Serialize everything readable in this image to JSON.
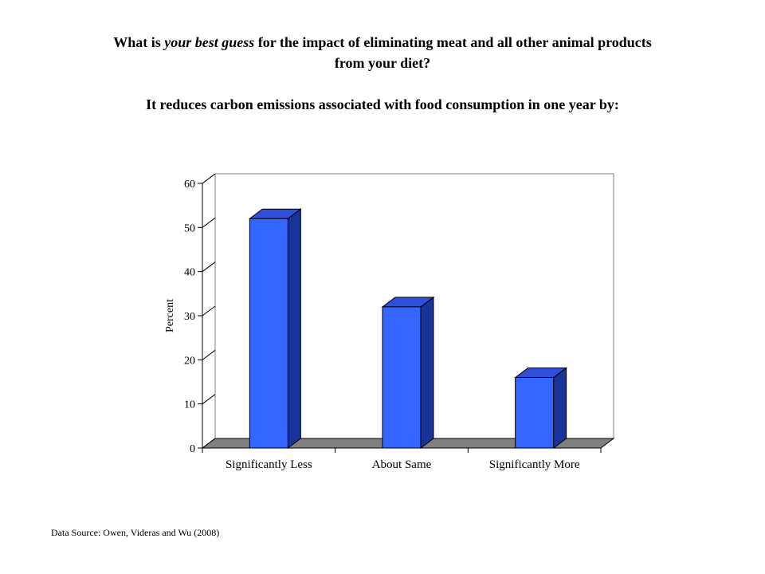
{
  "header": {
    "question_pre": "What is ",
    "question_emph": "your best guess",
    "question_post": " for the impact of eliminating meat and all other animal products",
    "question_line2": "from your diet?",
    "statement": "It reduces carbon emissions associated with food consumption in one year by:"
  },
  "footer": {
    "source": "Data Source: Owen, Videras and Wu (2008)"
  },
  "chart_data": {
    "type": "bar",
    "categories": [
      "Significantly Less",
      "About Same",
      "Significantly More"
    ],
    "values": [
      52,
      32,
      16
    ],
    "ylabel": "Percent",
    "xlabel": "",
    "ylim": [
      0,
      60
    ],
    "yticks": [
      0,
      10,
      20,
      30,
      40,
      50,
      60
    ],
    "grid": false,
    "three_d": true,
    "colors": {
      "bar_front": "#3366FF",
      "bar_side": "#1A3399",
      "bar_top": "#2F4FD8",
      "floor": "#808080",
      "axis": "#000000"
    }
  }
}
